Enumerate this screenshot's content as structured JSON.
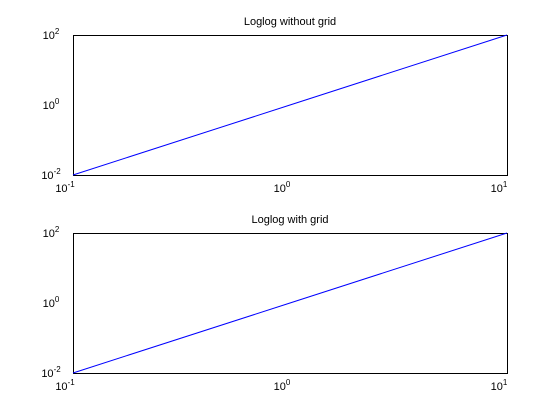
{
  "chart_data": [
    {
      "type": "line",
      "title": "Loglog without grid",
      "xscale": "log",
      "yscale": "log",
      "xlim": [
        0.1,
        10
      ],
      "ylim": [
        0.01,
        100
      ],
      "grid": false,
      "x_tick_labels": [
        "10^-1",
        "10^0",
        "10^1"
      ],
      "y_tick_labels": [
        "10^-2",
        "10^0",
        "10^2"
      ],
      "series": [
        {
          "x": [
            0.1,
            1,
            10
          ],
          "y": [
            0.01,
            1,
            100
          ],
          "color": "#0000ff"
        }
      ]
    },
    {
      "type": "line",
      "title": "Loglog with grid",
      "xscale": "log",
      "yscale": "log",
      "xlim": [
        0.1,
        10
      ],
      "ylim": [
        0.01,
        100
      ],
      "grid": true,
      "x_tick_labels": [
        "10^-1",
        "10^0",
        "10^1"
      ],
      "y_tick_labels": [
        "10^-2",
        "10^0",
        "10^2"
      ],
      "series": [
        {
          "x": [
            0.1,
            1,
            10
          ],
          "y": [
            0.01,
            1,
            100
          ],
          "color": "#0000ff"
        }
      ]
    }
  ]
}
